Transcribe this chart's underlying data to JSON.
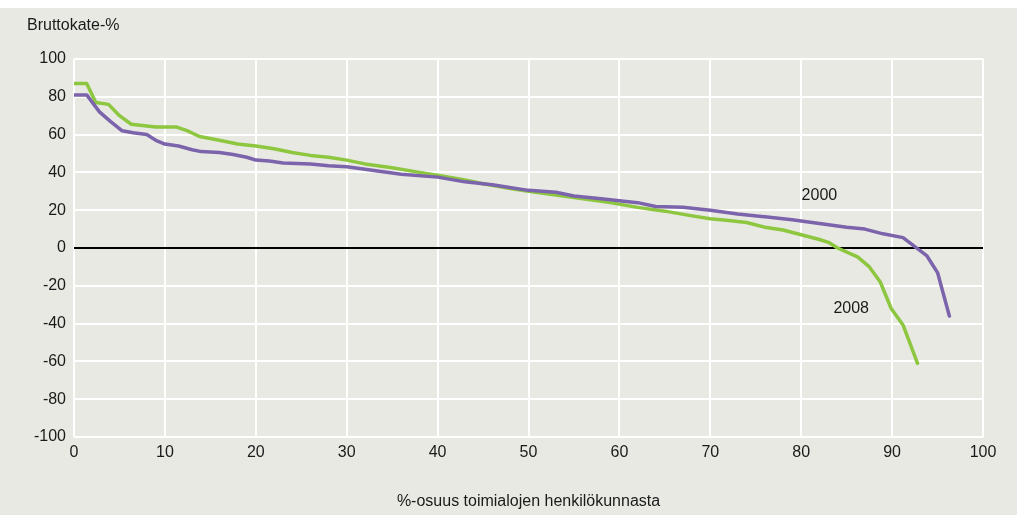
{
  "chart_data": {
    "type": "line",
    "ylabel": "Bruttokate-%",
    "xlabel": "%-osuus toimialojen henkilökunnasta",
    "xlim": [
      0,
      100
    ],
    "xticks": [
      0,
      10,
      20,
      30,
      40,
      50,
      60,
      70,
      80,
      90,
      100
    ],
    "ylim": [
      -100,
      100
    ],
    "yticks": [
      -100,
      -80,
      -60,
      -40,
      -20,
      0,
      20,
      40,
      60,
      80,
      100
    ],
    "grid": true,
    "legend": false,
    "marker": "none",
    "line_style": "solid",
    "ref_lines": [
      {
        "axis": "y",
        "value": 0,
        "color": "#000000"
      }
    ],
    "series": [
      {
        "name": "2000",
        "color": "#7b64ab",
        "x": [
          0,
          1.4,
          2.8,
          4,
          5.3,
          6.5,
          8,
          9,
          10,
          11.5,
          13,
          14,
          16,
          17.5,
          19,
          20,
          21.5,
          23,
          26,
          28,
          30,
          33,
          36,
          40,
          43,
          46,
          50,
          53,
          55,
          58,
          60,
          62,
          64,
          67,
          70,
          73,
          76,
          79,
          82,
          85,
          87,
          89,
          91.2,
          93.8,
          95,
          96.3
        ],
        "values": [
          81,
          81,
          72,
          67,
          62,
          61,
          60,
          57,
          55,
          54,
          52,
          51,
          50.5,
          49.5,
          48,
          46.5,
          46,
          45,
          44.5,
          43.5,
          43,
          41,
          39,
          37.5,
          35,
          33.5,
          30.5,
          29.5,
          27.5,
          26,
          25,
          24,
          22,
          21.5,
          20,
          18,
          16.5,
          15,
          13,
          11,
          10,
          7.5,
          5.5,
          -4,
          -13,
          -36
        ]
      },
      {
        "name": "2008",
        "color": "#8dc63f",
        "x": [
          0,
          1.4,
          2.4,
          3.8,
          5,
          6.3,
          8,
          9,
          11.3,
          12.5,
          13.8,
          16,
          18,
          20,
          22,
          24,
          26,
          28,
          30,
          32,
          35,
          38,
          40,
          43,
          45,
          48,
          50,
          53,
          56,
          59,
          62,
          65,
          68,
          70,
          72,
          74,
          76,
          78,
          80,
          82,
          83,
          84,
          86.2,
          87.5,
          88.7,
          89.9,
          91.2,
          92.8
        ],
        "values": [
          87,
          87,
          77,
          76,
          70,
          65.5,
          64.5,
          64,
          64,
          62,
          59,
          57,
          55,
          54,
          52.5,
          50.5,
          49,
          48,
          46.5,
          44.5,
          42.5,
          40,
          38.5,
          36,
          34,
          31.5,
          30,
          28,
          26,
          24,
          21.5,
          19.5,
          17,
          15.5,
          14.5,
          13.5,
          11,
          9.5,
          7,
          4.5,
          3,
          0,
          -4.7,
          -10,
          -18,
          -32,
          -40.7,
          -61
        ]
      }
    ]
  }
}
